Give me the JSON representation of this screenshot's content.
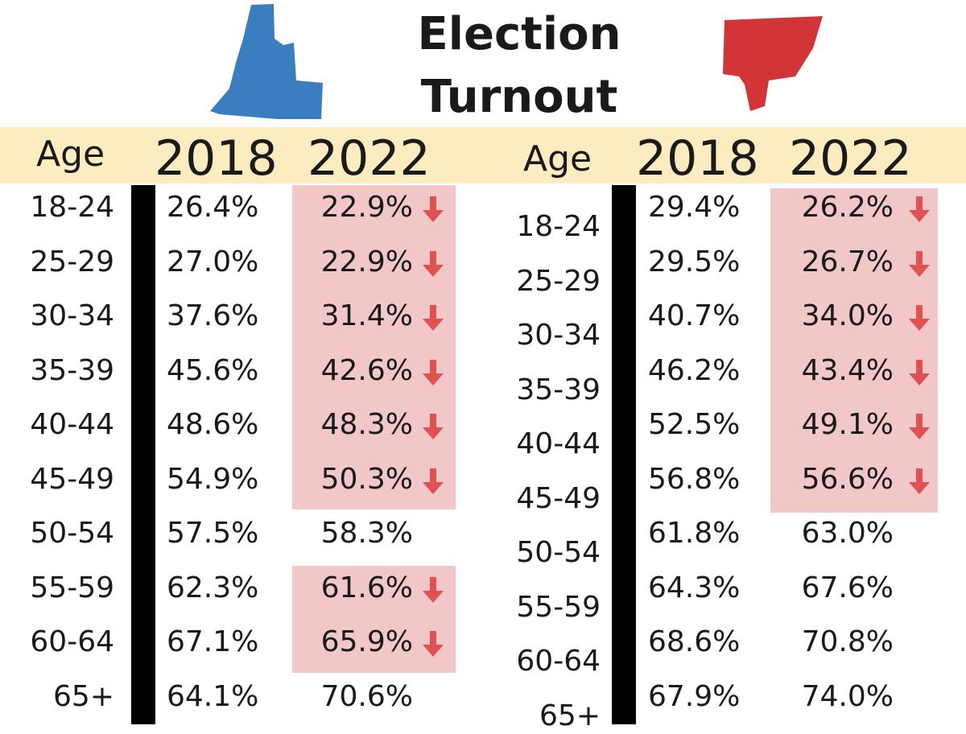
{
  "title_line1": "Election",
  "title_line2": "Turnout",
  "colors": {
    "blue": "#3a7ebf",
    "red": "#d13537",
    "band": "#fdecc0",
    "highlight": "#f2c7c8",
    "arrow": "#e05252"
  },
  "chart_data": [
    {
      "type": "table",
      "party_icon": "blue-state-shape-icon",
      "columns": [
        "Age",
        "2018",
        "2022"
      ],
      "rows": [
        {
          "age": "18-24",
          "y2018": "26.4%",
          "y2022": "22.9%",
          "decrease": true
        },
        {
          "age": "25-29",
          "y2018": "27.0%",
          "y2022": "22.9%",
          "decrease": true
        },
        {
          "age": "30-34",
          "y2018": "37.6%",
          "y2022": "31.4%",
          "decrease": true
        },
        {
          "age": "35-39",
          "y2018": "45.6%",
          "y2022": "42.6%",
          "decrease": true
        },
        {
          "age": "40-44",
          "y2018": "48.6%",
          "y2022": "48.3%",
          "decrease": true
        },
        {
          "age": "45-49",
          "y2018": "54.9%",
          "y2022": "50.3%",
          "decrease": true
        },
        {
          "age": "50-54",
          "y2018": "57.5%",
          "y2022": "58.3%",
          "decrease": false
        },
        {
          "age": "55-59",
          "y2018": "62.3%",
          "y2022": "61.6%",
          "decrease": true
        },
        {
          "age": "60-64",
          "y2018": "67.1%",
          "y2022": "65.9%",
          "decrease": true
        },
        {
          "age": "65+",
          "y2018": "64.1%",
          "y2022": "70.6%",
          "decrease": false
        }
      ]
    },
    {
      "type": "table",
      "party_icon": "red-state-shape-icon",
      "columns": [
        "Age",
        "2018",
        "2022"
      ],
      "rows": [
        {
          "age": "18-24",
          "y2018": "29.4%",
          "y2022": "26.2%",
          "decrease": true
        },
        {
          "age": "25-29",
          "y2018": "29.5%",
          "y2022": "26.7%",
          "decrease": true
        },
        {
          "age": "30-34",
          "y2018": "40.7%",
          "y2022": "34.0%",
          "decrease": true
        },
        {
          "age": "35-39",
          "y2018": "46.2%",
          "y2022": "43.4%",
          "decrease": true
        },
        {
          "age": "40-44",
          "y2018": "52.5%",
          "y2022": "49.1%",
          "decrease": true
        },
        {
          "age": "45-49",
          "y2018": "56.8%",
          "y2022": "56.6%",
          "decrease": true
        },
        {
          "age": "50-54",
          "y2018": "61.8%",
          "y2022": "63.0%",
          "decrease": false
        },
        {
          "age": "55-59",
          "y2018": "64.3%",
          "y2022": "67.6%",
          "decrease": false
        },
        {
          "age": "60-64",
          "y2018": "68.6%",
          "y2022": "70.8%",
          "decrease": false
        },
        {
          "age": "65+",
          "y2018": "67.9%",
          "y2022": "74.0%",
          "decrease": false
        }
      ]
    }
  ]
}
